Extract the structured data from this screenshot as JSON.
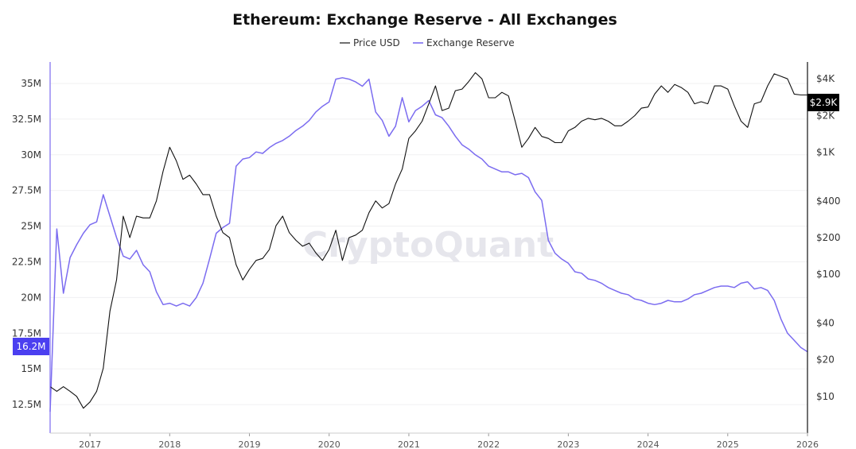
{
  "chart_data": {
    "type": "line",
    "title": "Ethereum: Exchange Reserve - All Exchanges",
    "watermark": "CryptoQuant",
    "legend": {
      "placement": "top-center",
      "entries": [
        "Price USD",
        "Exchange Reserve"
      ]
    },
    "colors": {
      "price": "#111111",
      "reserve": "#7b6cf0",
      "reserve_badge": "#4b3ff0",
      "price_badge": "#000000"
    },
    "x_ticks": [
      "2017",
      "2018",
      "2019",
      "2020",
      "2021",
      "2022",
      "2023",
      "2024",
      "2025",
      "2026"
    ],
    "x_range": [
      "2016-07",
      "2026-01"
    ],
    "y_left": {
      "scale": "linear",
      "range": [
        10500000,
        36500000
      ],
      "ticks": [
        {
          "value": 12500000,
          "label": "12.5M"
        },
        {
          "value": 15000000,
          "label": "15M"
        },
        {
          "value": 17500000,
          "label": "17.5M"
        },
        {
          "value": 20000000,
          "label": "20M"
        },
        {
          "value": 22500000,
          "label": "22.5M"
        },
        {
          "value": 25000000,
          "label": "25M"
        },
        {
          "value": 27500000,
          "label": "27.5M"
        },
        {
          "value": 30000000,
          "label": "30M"
        },
        {
          "value": 32500000,
          "label": "32.5M"
        },
        {
          "value": 35000000,
          "label": "35M"
        }
      ]
    },
    "y_right": {
      "scale": "log",
      "range": [
        5,
        5500
      ],
      "ticks": [
        {
          "value": 10,
          "label": "$10"
        },
        {
          "value": 20,
          "label": "$20"
        },
        {
          "value": 40,
          "label": "$40"
        },
        {
          "value": 100,
          "label": "$100"
        },
        {
          "value": 200,
          "label": "$200"
        },
        {
          "value": 400,
          "label": "$400"
        },
        {
          "value": 1000,
          "label": "$1K"
        },
        {
          "value": 2000,
          "label": "$2K"
        },
        {
          "value": 4000,
          "label": "$4K"
        }
      ]
    },
    "current_values": {
      "reserve": "16.2M",
      "price": "$2.9K"
    },
    "series": [
      {
        "name": "Price USD",
        "axis": "right",
        "x": [
          "2016-07",
          "2016-08",
          "2016-09",
          "2016-10",
          "2016-11",
          "2016-12",
          "2017-01",
          "2017-02",
          "2017-03",
          "2017-04",
          "2017-05",
          "2017-06",
          "2017-07",
          "2017-08",
          "2017-09",
          "2017-10",
          "2017-11",
          "2017-12",
          "2018-01",
          "2018-02",
          "2018-03",
          "2018-04",
          "2018-05",
          "2018-06",
          "2018-07",
          "2018-08",
          "2018-09",
          "2018-10",
          "2018-11",
          "2018-12",
          "2019-01",
          "2019-02",
          "2019-03",
          "2019-04",
          "2019-05",
          "2019-06",
          "2019-07",
          "2019-08",
          "2019-09",
          "2019-10",
          "2019-11",
          "2019-12",
          "2020-01",
          "2020-02",
          "2020-03",
          "2020-04",
          "2020-05",
          "2020-06",
          "2020-07",
          "2020-08",
          "2020-09",
          "2020-10",
          "2020-11",
          "2020-12",
          "2021-01",
          "2021-02",
          "2021-03",
          "2021-04",
          "2021-05",
          "2021-06",
          "2021-07",
          "2021-08",
          "2021-09",
          "2021-10",
          "2021-11",
          "2021-12",
          "2022-01",
          "2022-02",
          "2022-03",
          "2022-04",
          "2022-05",
          "2022-06",
          "2022-07",
          "2022-08",
          "2022-09",
          "2022-10",
          "2022-11",
          "2022-12",
          "2023-01",
          "2023-02",
          "2023-03",
          "2023-04",
          "2023-05",
          "2023-06",
          "2023-07",
          "2023-08",
          "2023-09",
          "2023-10",
          "2023-11",
          "2023-12",
          "2024-01",
          "2024-02",
          "2024-03",
          "2024-04",
          "2024-05",
          "2024-06",
          "2024-07",
          "2024-08",
          "2024-09",
          "2024-10",
          "2024-11",
          "2024-12",
          "2025-01",
          "2025-02",
          "2025-03",
          "2025-04",
          "2025-05",
          "2025-06",
          "2025-07",
          "2025-08",
          "2025-09",
          "2025-10",
          "2025-11",
          "2025-12",
          "2026-01"
        ],
        "values": [
          12,
          11,
          12,
          11,
          10,
          8,
          9,
          11,
          17,
          50,
          90,
          300,
          200,
          300,
          290,
          290,
          400,
          700,
          1100,
          850,
          600,
          650,
          550,
          450,
          450,
          300,
          220,
          200,
          120,
          90,
          110,
          130,
          135,
          160,
          250,
          300,
          220,
          190,
          170,
          180,
          150,
          130,
          160,
          230,
          130,
          200,
          210,
          230,
          320,
          400,
          350,
          380,
          550,
          730,
          1300,
          1500,
          1800,
          2500,
          3500,
          2200,
          2300,
          3200,
          3300,
          3800,
          4500,
          4000,
          2800,
          2800,
          3100,
          2900,
          1800,
          1100,
          1300,
          1600,
          1350,
          1300,
          1200,
          1200,
          1500,
          1600,
          1800,
          1900,
          1850,
          1900,
          1800,
          1650,
          1650,
          1800,
          2000,
          2300,
          2350,
          3000,
          3500,
          3100,
          3600,
          3400,
          3100,
          2500,
          2600,
          2500,
          3500,
          3500,
          3300,
          2400,
          1800,
          1600,
          2500,
          2600,
          3500,
          4400,
          4200,
          4000,
          3000,
          2950,
          2950
        ]
      },
      {
        "name": "Exchange Reserve",
        "axis": "left",
        "x": [
          "2016-07",
          "2016-08",
          "2016-09",
          "2016-10",
          "2016-11",
          "2016-12",
          "2017-01",
          "2017-02",
          "2017-03",
          "2017-04",
          "2017-05",
          "2017-06",
          "2017-07",
          "2017-08",
          "2017-09",
          "2017-10",
          "2017-11",
          "2017-12",
          "2018-01",
          "2018-02",
          "2018-03",
          "2018-04",
          "2018-05",
          "2018-06",
          "2018-07",
          "2018-08",
          "2018-09",
          "2018-10",
          "2018-11",
          "2018-12",
          "2019-01",
          "2019-02",
          "2019-03",
          "2019-04",
          "2019-05",
          "2019-06",
          "2019-07",
          "2019-08",
          "2019-09",
          "2019-10",
          "2019-11",
          "2019-12",
          "2020-01",
          "2020-02",
          "2020-03",
          "2020-04",
          "2020-05",
          "2020-06",
          "2020-07",
          "2020-08",
          "2020-09",
          "2020-10",
          "2020-11",
          "2020-12",
          "2021-01",
          "2021-02",
          "2021-03",
          "2021-04",
          "2021-05",
          "2021-06",
          "2021-07",
          "2021-08",
          "2021-09",
          "2021-10",
          "2021-11",
          "2021-12",
          "2022-01",
          "2022-02",
          "2022-03",
          "2022-04",
          "2022-05",
          "2022-06",
          "2022-07",
          "2022-08",
          "2022-09",
          "2022-10",
          "2022-11",
          "2022-12",
          "2023-01",
          "2023-02",
          "2023-03",
          "2023-04",
          "2023-05",
          "2023-06",
          "2023-07",
          "2023-08",
          "2023-09",
          "2023-10",
          "2023-11",
          "2023-12",
          "2024-01",
          "2024-02",
          "2024-03",
          "2024-04",
          "2024-05",
          "2024-06",
          "2024-07",
          "2024-08",
          "2024-09",
          "2024-10",
          "2024-11",
          "2024-12",
          "2025-01",
          "2025-02",
          "2025-03",
          "2025-04",
          "2025-05",
          "2025-06",
          "2025-07",
          "2025-08",
          "2025-09",
          "2025-10",
          "2025-11",
          "2025-12",
          "2026-01"
        ],
        "values": [
          12000000,
          24800000,
          20300000,
          22800000,
          23700000,
          24500000,
          25100000,
          25300000,
          27200000,
          25700000,
          24200000,
          22900000,
          22700000,
          23300000,
          22300000,
          21800000,
          20400000,
          19500000,
          19600000,
          19400000,
          19600000,
          19400000,
          20000000,
          21000000,
          22700000,
          24500000,
          24900000,
          25200000,
          29200000,
          29700000,
          29800000,
          30200000,
          30100000,
          30500000,
          30800000,
          31000000,
          31300000,
          31700000,
          32000000,
          32400000,
          33000000,
          33400000,
          33700000,
          35300000,
          35400000,
          35300000,
          35100000,
          34800000,
          35300000,
          33000000,
          32400000,
          31300000,
          32000000,
          34000000,
          32300000,
          33100000,
          33400000,
          33800000,
          32800000,
          32600000,
          32000000,
          31300000,
          30700000,
          30400000,
          30000000,
          29700000,
          29200000,
          29000000,
          28800000,
          28800000,
          28600000,
          28700000,
          28400000,
          27400000,
          26800000,
          24000000,
          23100000,
          22700000,
          22400000,
          21800000,
          21700000,
          21300000,
          21200000,
          21000000,
          20700000,
          20500000,
          20300000,
          20200000,
          19900000,
          19800000,
          19600000,
          19500000,
          19600000,
          19800000,
          19700000,
          19700000,
          19900000,
          20200000,
          20300000,
          20500000,
          20700000,
          20800000,
          20800000,
          20700000,
          21000000,
          21100000,
          20600000,
          20700000,
          20500000,
          19800000,
          18500000,
          17500000,
          17000000,
          16500000,
          16200000
        ]
      }
    ]
  }
}
